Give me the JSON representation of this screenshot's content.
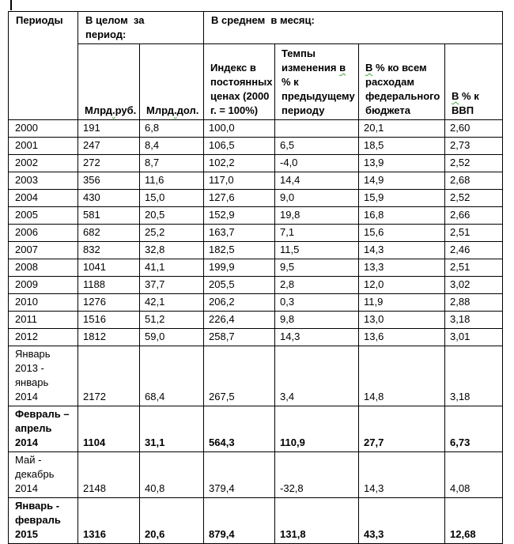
{
  "colors": {
    "border": "#000000",
    "text": "#000000",
    "squiggle": "#3da53d",
    "background": "#ffffff"
  },
  "caret_symbol": "|",
  "table": {
    "header": {
      "periods": "Периоды",
      "total_group": "В целом  за\nпериод:",
      "monthly_group": "В среднем  в месяц:",
      "subheaders": [
        {
          "name": "col-mlrd-rub",
          "segments": [
            {
              "text": "Млрд",
              "wavy": false
            },
            {
              "text": ".",
              "wavy": true
            },
            {
              "text": "руб.",
              "wavy": false
            }
          ]
        },
        {
          "name": "col-mlrd-dol",
          "segments": [
            {
              "text": "Млрд",
              "wavy": false
            },
            {
              "text": ".",
              "wavy": true
            },
            {
              "text": "дол.",
              "wavy": false
            }
          ]
        },
        {
          "name": "col-constant-price-index",
          "segments": [
            {
              "text": "Индекс в\nпостоянных\nценах (2000\nг. = 100%)",
              "wavy": false
            }
          ]
        },
        {
          "name": "col-change-rate",
          "segments": [
            {
              "text": "Темпы\nизменения ",
              "wavy": false
            },
            {
              "text": "в",
              "wavy": true
            },
            {
              "text": "\n% к\nпредыдущему\nпериоду",
              "wavy": false
            }
          ]
        },
        {
          "name": "col-federal-budget-share",
          "segments": [
            {
              "text": "В",
              "wavy": true
            },
            {
              "text": " % ко всем\nрасходам\nфедерального\nбюджета",
              "wavy": false
            }
          ]
        },
        {
          "name": "col-gdp-share",
          "segments": [
            {
              "text": "В",
              "wavy": true
            },
            {
              "text": " % к\nВВП",
              "wavy": false
            }
          ]
        }
      ]
    },
    "rows": [
      {
        "period": "2000",
        "bold": false,
        "values": [
          "191",
          "6,8",
          "100,0",
          "",
          "20,1",
          "2,60"
        ]
      },
      {
        "period": "2001",
        "bold": false,
        "values": [
          "247",
          "8,4",
          "106,5",
          "6,5",
          "18,5",
          "2,73"
        ]
      },
      {
        "period": "2002",
        "bold": false,
        "values": [
          "272",
          "8,7",
          "102,2",
          "-4,0",
          "13,9",
          "2,52"
        ]
      },
      {
        "period": "2003",
        "bold": false,
        "values": [
          "356",
          "11,6",
          "117,0",
          "14,4",
          "14,9",
          "2,68"
        ]
      },
      {
        "period": "2004",
        "bold": false,
        "values": [
          "430",
          "15,0",
          "127,6",
          "9,0",
          "15,9",
          "2,52"
        ]
      },
      {
        "period": "2005",
        "bold": false,
        "values": [
          "581",
          "20,5",
          "152,9",
          "19,8",
          "16,8",
          "2,66"
        ]
      },
      {
        "period": "2006",
        "bold": false,
        "values": [
          "682",
          "25,2",
          "163,7",
          "7,1",
          "15,6",
          "2,51"
        ]
      },
      {
        "period": "2007",
        "bold": false,
        "values": [
          "832",
          "32,8",
          "182,5",
          "11,5",
          "14,3",
          "2,46"
        ]
      },
      {
        "period": "2008",
        "bold": false,
        "values": [
          "1041",
          "41,1",
          "199,9",
          "9,5",
          "13,3",
          "2,51"
        ]
      },
      {
        "period": "2009",
        "bold": false,
        "values": [
          "1188",
          "37,7",
          "205,5",
          "2,8",
          "12,0",
          "3,02"
        ]
      },
      {
        "period": "2010",
        "bold": false,
        "values": [
          "1276",
          "42,1",
          "206,2",
          "0,3",
          "11,9",
          "2,88"
        ]
      },
      {
        "period": "2011",
        "bold": false,
        "values": [
          "1516",
          "51,2",
          "226,4",
          "9,8",
          "13,0",
          "3,18"
        ]
      },
      {
        "period": "2012",
        "bold": false,
        "values": [
          "1812",
          "59,0",
          "258,7",
          "14,3",
          "13,6",
          "3,01"
        ]
      },
      {
        "period": "Январь\n2013 -\nянварь\n2014",
        "bold": false,
        "values": [
          "2172",
          "68,4",
          "267,5",
          "3,4",
          "14,8",
          "3,18"
        ]
      },
      {
        "period": "Февраль –\nапрель\n2014",
        "bold": true,
        "values": [
          "1104",
          "31,1",
          "564,3",
          "110,9",
          "27,7",
          "6,73"
        ]
      },
      {
        "period": "Май -\nдекабрь\n2014",
        "bold": false,
        "values": [
          "2148",
          "40,8",
          "379,4",
          "-32,8",
          "14,3",
          "4,08"
        ]
      },
      {
        "period": "Январь -\nфевраль\n2015",
        "bold": true,
        "values": [
          "1316",
          "20,6",
          "879,4",
          "131,8",
          "43,3",
          "12,68"
        ]
      }
    ]
  }
}
